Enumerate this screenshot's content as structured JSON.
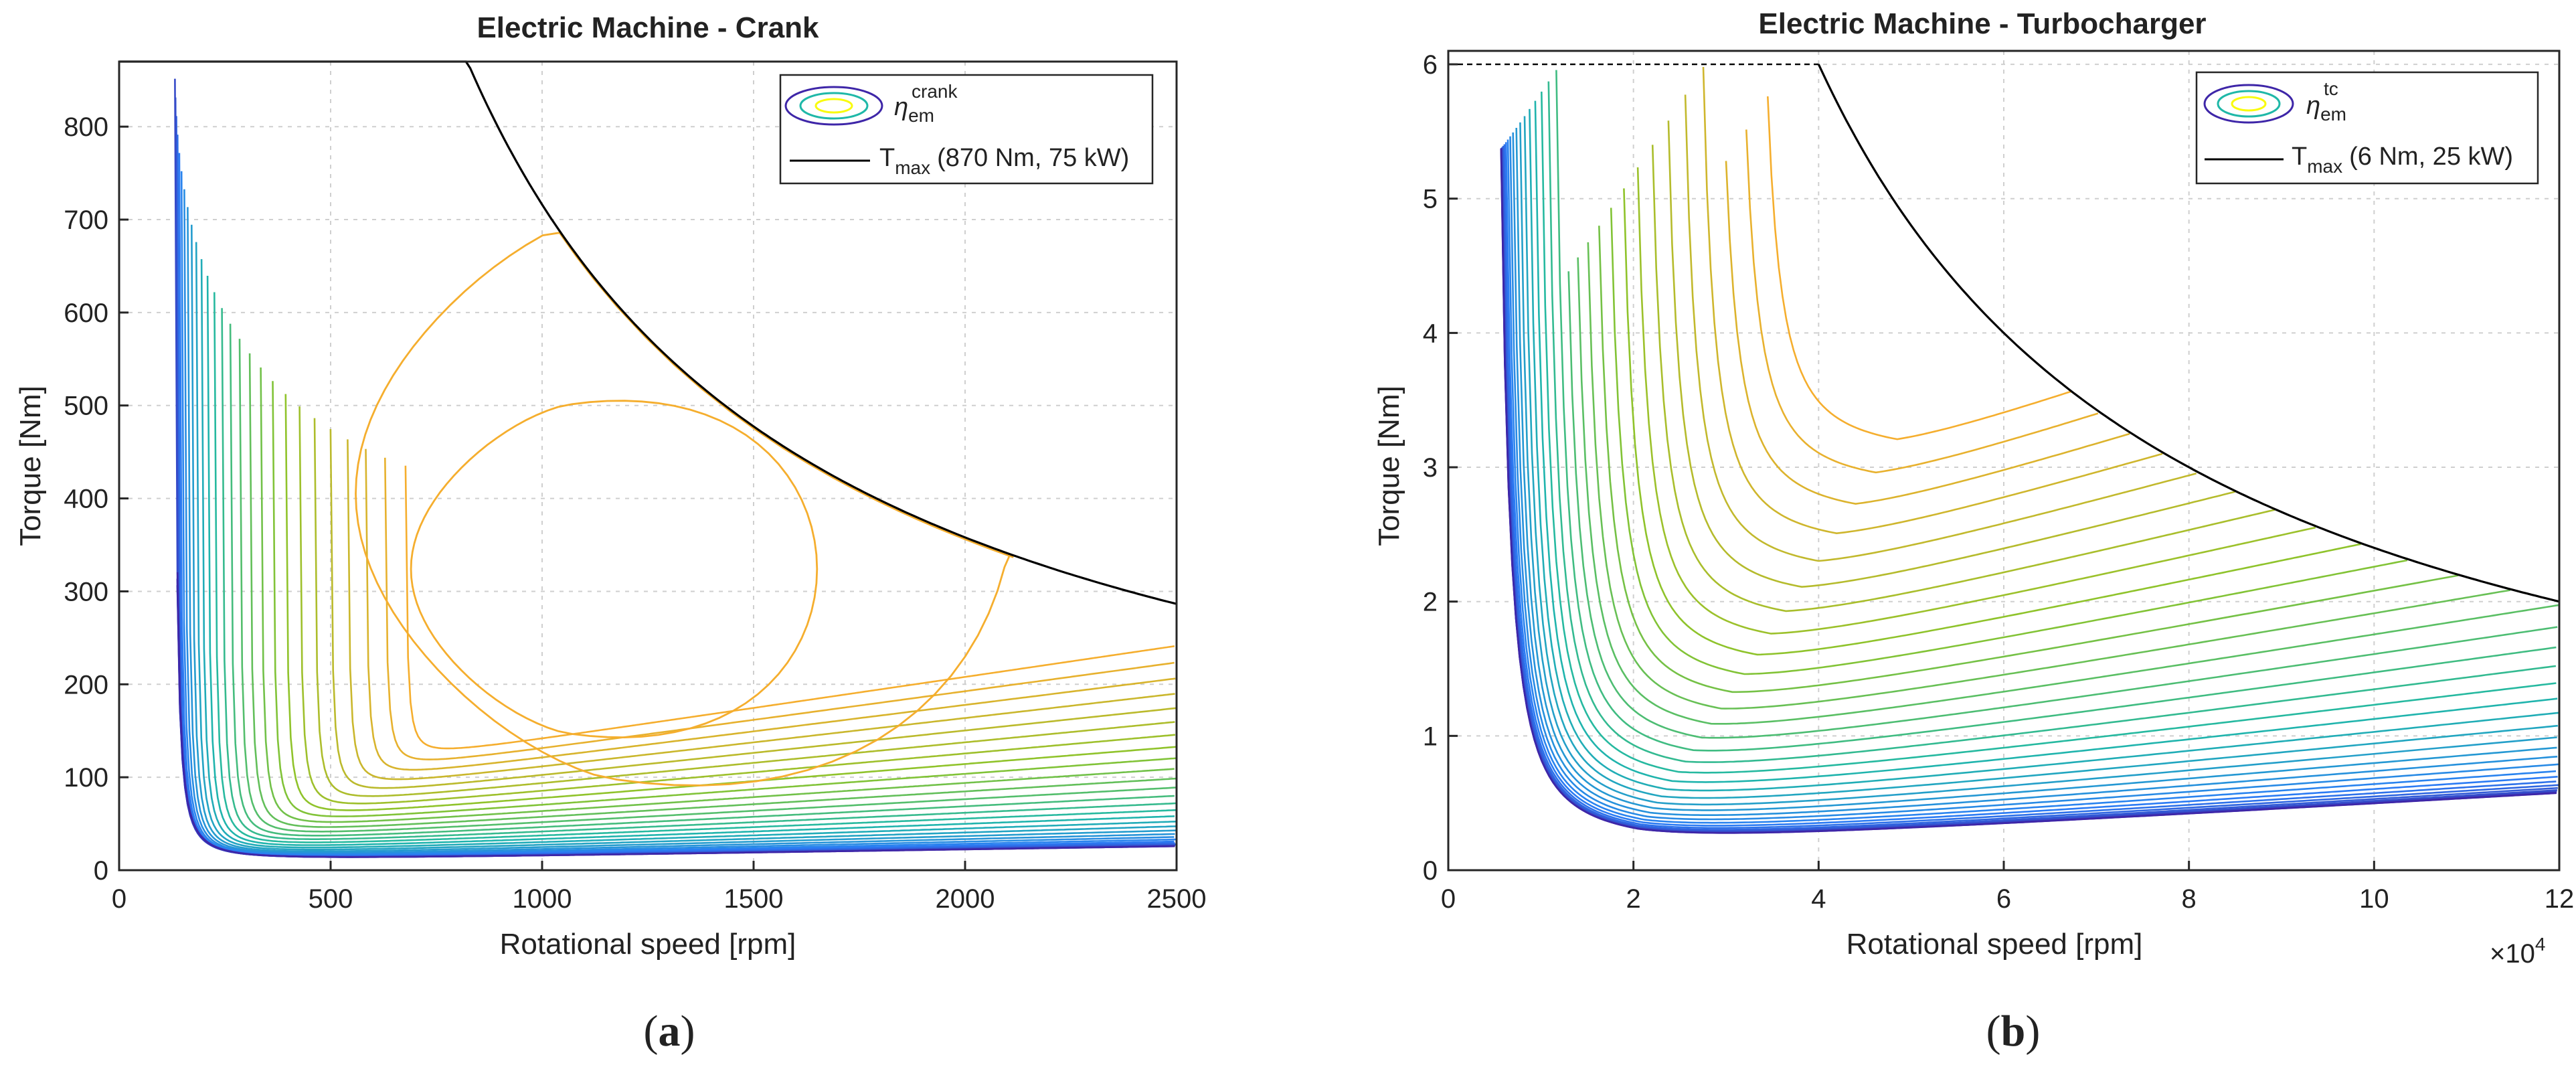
{
  "chart_data": [
    {
      "type": "contour",
      "panel_caption": "a",
      "title": "Electric Machine - Crank",
      "xlabel": "Rotational speed [rpm]",
      "ylabel": "Torque [Nm]",
      "xlim": [
        0,
        2500
      ],
      "ylim": [
        0,
        870
      ],
      "xticks": [
        "0",
        "500",
        "1000",
        "1500",
        "2000",
        "2500"
      ],
      "yticks": [
        "0",
        "100",
        "200",
        "300",
        "400",
        "500",
        "600",
        "700",
        "800"
      ],
      "xtick_values": [
        0,
        500,
        1000,
        1500,
        2000,
        2500
      ],
      "ytick_values": [
        0,
        100,
        200,
        300,
        400,
        500,
        600,
        700,
        800
      ],
      "x_multiplier": "",
      "grid": true,
      "legend_position": "top-right",
      "legend": {
        "contour_symbol": "η",
        "contour_subscript": "em",
        "contour_superscript": "crank",
        "line_label": "T",
        "line_subscript": "max",
        "line_note": "(870 Nm, 75 kW)"
      },
      "max_torque": {
        "torque_max": 870,
        "power_kw": 75
      },
      "efficiency_peak": {
        "speed": 1000,
        "torque": 300
      },
      "closed_contours": [
        {
          "name": "closed-1",
          "xmin": 690,
          "xmax": 1650,
          "ymin": 148,
          "ymax": 500
        },
        {
          "name": "closed-2",
          "xmin": 545,
          "xmax": 2100,
          "ymin": 100,
          "ymax": 710
        }
      ],
      "open_contours_count": 30
    },
    {
      "type": "contour",
      "panel_caption": "b",
      "title": "Electric Machine - Turbocharger",
      "xlabel": "Rotational speed [rpm]",
      "ylabel": "Torque [Nm]",
      "xlim": [
        0,
        12
      ],
      "ylim": [
        0,
        6.1
      ],
      "xticks": [
        "0",
        "2",
        "4",
        "6",
        "8",
        "10",
        "12"
      ],
      "yticks": [
        "0",
        "1",
        "2",
        "3",
        "4",
        "5",
        "6"
      ],
      "xtick_values": [
        0,
        2,
        4,
        6,
        8,
        10,
        12
      ],
      "ytick_values": [
        0,
        1,
        2,
        3,
        4,
        5,
        6
      ],
      "x_multiplier": "×10",
      "x_multiplier_exp": "4",
      "grid": true,
      "legend_position": "top-right",
      "legend": {
        "contour_symbol": "η",
        "contour_subscript": "em",
        "contour_superscript": "tc",
        "line_label": "T",
        "line_subscript": "max",
        "line_note": "(6 Nm, 25 kW)"
      },
      "max_torque": {
        "torque_max": 6,
        "power_kw": 25
      },
      "efficiency_peak": {
        "speed": 4.8,
        "torque": 3.08
      },
      "open_contours_count": 34
    }
  ],
  "colors": {
    "contour_low": "#3e26a8",
    "contour_mid1": "#2a7ef6",
    "contour_mid2": "#1fb8a8",
    "contour_mid3": "#8cc42b",
    "contour_high": "#f5ae2e",
    "contour_top": "#f9fb0e",
    "max_line": "#000000"
  }
}
